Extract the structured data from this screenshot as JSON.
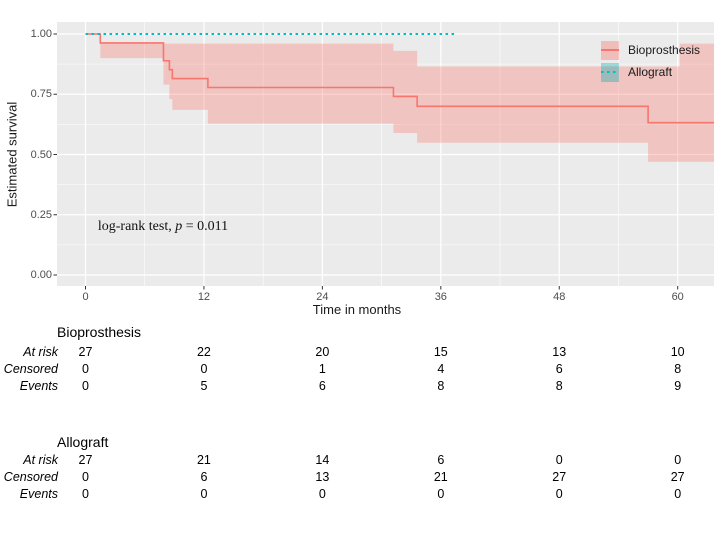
{
  "chart_data": {
    "type": "line",
    "title": "",
    "xlabel": "Time in months",
    "ylabel": "Estimated survival",
    "x_ticks": [
      "0",
      "12",
      "24",
      "36",
      "48",
      "60"
    ],
    "x_tick_values": [
      0,
      12,
      24,
      36,
      48,
      60
    ],
    "x_minor_ticks": [
      6,
      18,
      30,
      42,
      54
    ],
    "y_ticks": [
      "1.00",
      "0.75",
      "0.50",
      "0.25",
      "0.00"
    ],
    "y_tick_values": [
      1.0,
      0.75,
      0.5,
      0.25,
      0.0
    ],
    "y_minor_ticks": [
      0.875,
      0.625,
      0.375,
      0.125
    ],
    "xlim": [
      -2.9,
      63.8
    ],
    "ylim": [
      -0.046,
      1.05
    ],
    "grid": "on",
    "legend_position": "top-right-inside",
    "panel_background": "#EBEBEB",
    "gridline_color": "#FFFFFF",
    "annotation": {
      "prefix": "log-rank test, ",
      "italic": "p",
      "suffix": " = 0.011"
    },
    "series": [
      {
        "name": "Bioprosthesis",
        "color": "#F8766D",
        "linestyle": "solid",
        "points": [
          [
            0,
            1.0
          ],
          [
            1.5,
            1.0
          ],
          [
            1.5,
            0.963
          ],
          [
            7.9,
            0.963
          ],
          [
            7.9,
            0.889
          ],
          [
            8.5,
            0.889
          ],
          [
            8.5,
            0.852
          ],
          [
            8.8,
            0.852
          ],
          [
            8.8,
            0.815
          ],
          [
            12.4,
            0.815
          ],
          [
            12.4,
            0.778
          ],
          [
            31.2,
            0.778
          ],
          [
            31.2,
            0.741
          ],
          [
            33.6,
            0.741
          ],
          [
            33.6,
            0.7
          ],
          [
            57,
            0.7
          ],
          [
            57,
            0.632
          ],
          [
            63.8,
            0.632
          ]
        ],
        "ribbon_fill": "rgba(248,118,109,0.33)",
        "ribbon_upper": [
          [
            1.5,
            0.963
          ],
          [
            7.9,
            0.963
          ],
          [
            7.9,
            0.96
          ],
          [
            31.2,
            0.96
          ],
          [
            31.2,
            0.93
          ],
          [
            33.6,
            0.93
          ],
          [
            33.6,
            0.865
          ],
          [
            60.2,
            0.865
          ],
          [
            60.2,
            0.96
          ],
          [
            63.8,
            0.96
          ]
        ],
        "ribbon_lower": [
          [
            1.5,
            0.9
          ],
          [
            7.9,
            0.9
          ],
          [
            7.9,
            0.79
          ],
          [
            8.5,
            0.79
          ],
          [
            8.5,
            0.73
          ],
          [
            8.8,
            0.73
          ],
          [
            8.8,
            0.685
          ],
          [
            12.4,
            0.685
          ],
          [
            12.4,
            0.628
          ],
          [
            31.2,
            0.628
          ],
          [
            31.2,
            0.589
          ],
          [
            33.6,
            0.589
          ],
          [
            33.6,
            0.549
          ],
          [
            57,
            0.549
          ],
          [
            57,
            0.47
          ],
          [
            63.8,
            0.47
          ]
        ]
      },
      {
        "name": "Allograft",
        "color": "#00BFC4",
        "linestyle": "dotted",
        "points": [
          [
            0,
            1.0
          ],
          [
            37.4,
            1.0
          ]
        ]
      }
    ]
  },
  "legend": {
    "items": [
      {
        "label": "Bioprosthesis",
        "line_color": "#F8766D",
        "fill": "rgba(248,118,109,0.38)",
        "style": "solid"
      },
      {
        "label": "Allograft",
        "line_color": "#00BFC4",
        "fill": "rgba(0,170,175,0.35)",
        "style": "dotted"
      }
    ]
  },
  "risk_table": {
    "columns": [
      "0",
      "12",
      "24",
      "36",
      "48",
      "60"
    ],
    "groups": [
      {
        "title": "Bioprosthesis",
        "rows": [
          {
            "label": "At risk",
            "values": [
              "27",
              "22",
              "20",
              "15",
              "13",
              "10"
            ]
          },
          {
            "label": "Censored",
            "values": [
              "0",
              "0",
              "1",
              "4",
              "6",
              "8"
            ]
          },
          {
            "label": "Events",
            "values": [
              "0",
              "5",
              "6",
              "8",
              "8",
              "9"
            ]
          }
        ]
      },
      {
        "title": "Allograft",
        "rows": [
          {
            "label": "At risk",
            "values": [
              "27",
              "21",
              "14",
              "6",
              "0",
              "0"
            ]
          },
          {
            "label": "Censored",
            "values": [
              "0",
              "6",
              "13",
              "21",
              "27",
              "27"
            ]
          },
          {
            "label": "Events",
            "values": [
              "0",
              "0",
              "0",
              "0",
              "0",
              "0"
            ]
          }
        ]
      }
    ]
  }
}
